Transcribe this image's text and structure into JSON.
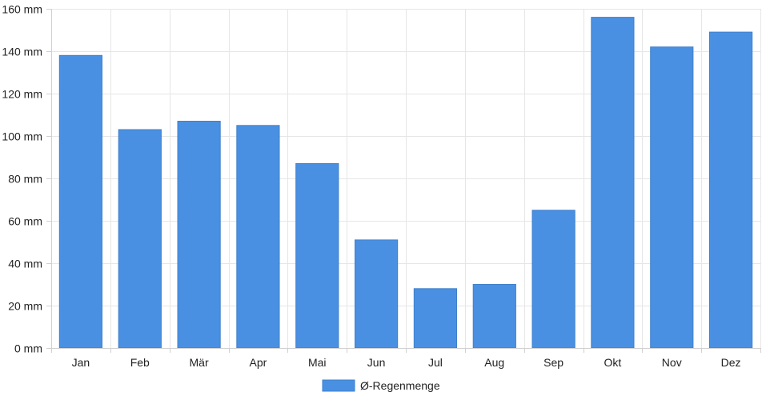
{
  "chart_data": {
    "type": "bar",
    "categories": [
      "Jan",
      "Feb",
      "Mär",
      "Apr",
      "Mai",
      "Jun",
      "Jul",
      "Aug",
      "Sep",
      "Okt",
      "Nov",
      "Dez"
    ],
    "series": [
      {
        "name": "Ø-Regenmenge",
        "values": [
          138,
          103,
          107,
          105,
          87,
          51,
          28,
          30,
          65,
          156,
          142,
          149
        ]
      }
    ],
    "yunit": "mm",
    "ylim": [
      0,
      160
    ],
    "yticks": [
      0,
      20,
      40,
      60,
      80,
      100,
      120,
      140,
      160
    ],
    "grid": true,
    "legend_position": "bottom-center",
    "xlabel": "",
    "ylabel": ""
  },
  "colors": {
    "bar": "#4a90e2",
    "bar_border": "#3f80cc"
  }
}
